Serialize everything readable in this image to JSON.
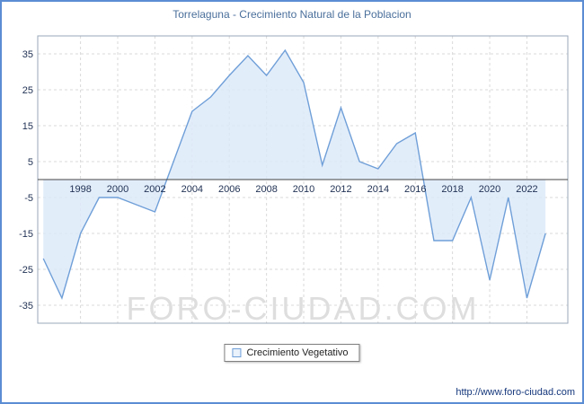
{
  "chart_data": {
    "type": "area",
    "title": "Torrelaguna - Crecimiento Natural de la Poblacion",
    "legend": "Crecimiento Vegetativo",
    "watermark": "FORO-CIUDAD.COM",
    "xlabel": "",
    "ylabel": "",
    "x": [
      1996,
      1997,
      1998,
      1999,
      2000,
      2001,
      2002,
      2003,
      2004,
      2005,
      2006,
      2007,
      2008,
      2009,
      2010,
      2011,
      2012,
      2013,
      2014,
      2015,
      2016,
      2017,
      2018,
      2019,
      2020,
      2021,
      2022,
      2023
    ],
    "values": [
      -22,
      -33,
      -15,
      -5,
      -5,
      -7,
      -9,
      5,
      19,
      23,
      29,
      34.5,
      29,
      36,
      27,
      4,
      20,
      5,
      3,
      10,
      13,
      -17,
      -17,
      -5,
      -28,
      -5,
      -33,
      -15
    ],
    "x_ticks": [
      1998,
      2000,
      2002,
      2004,
      2006,
      2008,
      2010,
      2012,
      2014,
      2016,
      2018,
      2020,
      2022
    ],
    "y_ticks": [
      35,
      25,
      15,
      5,
      -5,
      -15,
      -25,
      -35
    ],
    "x_range": [
      1995.7,
      2024.2
    ],
    "y_range": [
      -40,
      40
    ],
    "grid": true,
    "legend_position": "bottom",
    "line_color": "#6f9fd8",
    "fill_color": "#dbe9f9",
    "grid_color": "#d9d9d9",
    "axis_color": "#9aa7b8",
    "zero_line_color": "#444444",
    "tick_label_color": "#223355",
    "watermark_color": "#dedede"
  },
  "footer": {
    "url": "http://www.foro-ciudad.com"
  }
}
